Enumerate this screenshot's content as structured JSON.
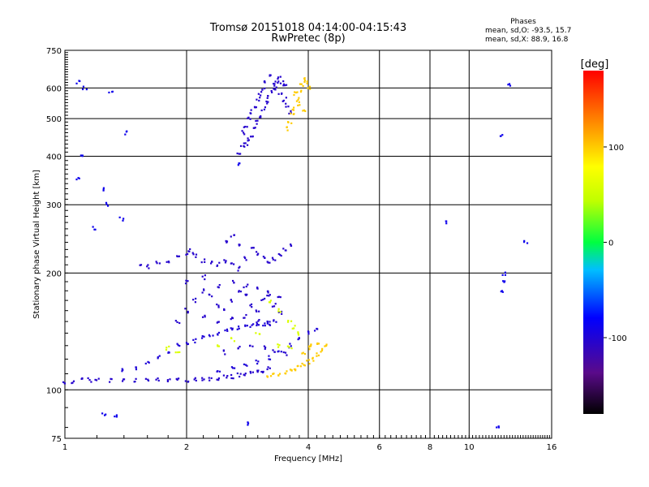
{
  "header": {
    "title_line1": "Tromsø 20151018 04:14:00-04:15:43",
    "title_line2": "RwPretec (8p)",
    "phase_title": "Phases",
    "phase_o": "mean, sd,O: -93.5, 15.7",
    "phase_x": "mean, sd,X: 88.9, 16.8"
  },
  "chart_data": {
    "type": "scatter",
    "xlabel": "Frequency [MHz]",
    "ylabel": "Stationary phase Virtual Height [km]",
    "x_scale": "log",
    "y_scale": "log",
    "xlim": [
      1,
      16
    ],
    "ylim": [
      75,
      750
    ],
    "x_ticks": [
      1,
      2,
      4,
      6,
      8,
      10,
      16
    ],
    "x_tick_labels": [
      "1",
      "2",
      "4",
      "6",
      "8",
      "10",
      "16"
    ],
    "y_ticks": [
      75,
      100,
      200,
      300,
      400,
      500,
      600,
      750
    ],
    "y_tick_labels": [
      "75",
      "100",
      "200",
      "300",
      "400",
      "500",
      "600",
      "750"
    ],
    "grid": true,
    "colorbar": {
      "label": "[deg]",
      "range": [
        -180,
        180
      ],
      "ticks": [
        100,
        0,
        -100
      ],
      "tick_labels": [
        "100",
        "0",
        "-100"
      ]
    },
    "point_groups": [
      {
        "trace": "O-mode lower trace",
        "phase_deg": -105,
        "points": [
          [
            1.0,
            104
          ],
          [
            1.05,
            105
          ],
          [
            1.1,
            106
          ],
          [
            1.15,
            106
          ],
          [
            1.2,
            106
          ],
          [
            1.3,
            106
          ],
          [
            1.4,
            106
          ],
          [
            1.5,
            106
          ],
          [
            1.6,
            106
          ],
          [
            1.7,
            106
          ],
          [
            1.8,
            106
          ],
          [
            1.9,
            106
          ],
          [
            2.0,
            106
          ],
          [
            2.1,
            106
          ],
          [
            2.2,
            107
          ],
          [
            2.3,
            107
          ],
          [
            2.4,
            107
          ],
          [
            2.5,
            108
          ],
          [
            2.6,
            108
          ],
          [
            2.7,
            109
          ],
          [
            2.8,
            109
          ],
          [
            2.9,
            110
          ],
          [
            3.0,
            111
          ],
          [
            3.1,
            112
          ],
          [
            3.2,
            114
          ]
        ]
      },
      {
        "trace": "O-mode second trace",
        "phase_deg": -100,
        "points": [
          [
            1.4,
            112
          ],
          [
            1.5,
            114
          ],
          [
            1.6,
            118
          ],
          [
            1.7,
            122
          ],
          [
            1.8,
            126
          ],
          [
            1.9,
            130
          ],
          [
            2.0,
            132
          ],
          [
            2.1,
            134
          ],
          [
            2.2,
            136
          ],
          [
            2.3,
            138
          ],
          [
            2.4,
            140
          ],
          [
            2.5,
            142
          ],
          [
            2.6,
            143
          ],
          [
            2.7,
            144
          ],
          [
            2.8,
            145
          ],
          [
            2.9,
            146
          ],
          [
            3.0,
            147
          ],
          [
            3.1,
            148
          ],
          [
            3.2,
            149
          ],
          [
            3.3,
            150
          ]
        ]
      },
      {
        "trace": "O-mode third trace",
        "phase_deg": -100,
        "points": [
          [
            2.4,
            112
          ],
          [
            2.6,
            114
          ],
          [
            2.8,
            116
          ],
          [
            3.0,
            118
          ],
          [
            3.2,
            121
          ],
          [
            3.4,
            125
          ],
          [
            3.6,
            130
          ],
          [
            3.8,
            135
          ],
          [
            4.0,
            140
          ],
          [
            4.2,
            142
          ]
        ]
      },
      {
        "trace": "O-mode diffuse F1 echoes",
        "phase_deg": -105,
        "points": [
          [
            1.9,
            150
          ],
          [
            2.0,
            160
          ],
          [
            2.1,
            170
          ],
          [
            2.2,
            180
          ],
          [
            2.3,
            175
          ],
          [
            2.4,
            165
          ],
          [
            2.5,
            160
          ],
          [
            2.6,
            170
          ],
          [
            2.7,
            180
          ],
          [
            2.8,
            175
          ],
          [
            2.9,
            165
          ],
          [
            3.0,
            160
          ],
          [
            3.1,
            170
          ],
          [
            3.2,
            175
          ],
          [
            3.3,
            165
          ],
          [
            3.4,
            158
          ],
          [
            2.2,
            155
          ],
          [
            2.4,
            150
          ],
          [
            2.6,
            152
          ],
          [
            2.8,
            155
          ],
          [
            3.0,
            150
          ],
          [
            3.2,
            148
          ],
          [
            2.5,
            125
          ],
          [
            2.7,
            128
          ],
          [
            2.9,
            130
          ],
          [
            3.1,
            128
          ],
          [
            3.3,
            126
          ],
          [
            3.5,
            124
          ],
          [
            2.0,
            190
          ],
          [
            2.2,
            195
          ],
          [
            2.4,
            185
          ],
          [
            2.6,
            190
          ],
          [
            2.8,
            185
          ],
          [
            3.0,
            182
          ],
          [
            3.2,
            178
          ],
          [
            3.4,
            172
          ]
        ]
      },
      {
        "trace": "O-mode F1 upper echoes",
        "phase_deg": -105,
        "points": [
          [
            1.55,
            210
          ],
          [
            1.6,
            208
          ],
          [
            1.7,
            212
          ],
          [
            1.8,
            215
          ],
          [
            1.9,
            222
          ],
          [
            2.0,
            225
          ],
          [
            2.05,
            228
          ],
          [
            2.1,
            222
          ],
          [
            2.2,
            215
          ],
          [
            2.3,
            212
          ],
          [
            2.4,
            210
          ],
          [
            2.5,
            215
          ],
          [
            2.6,
            210
          ],
          [
            2.7,
            205
          ],
          [
            2.8,
            218
          ],
          [
            2.9,
            230
          ],
          [
            3.0,
            225
          ],
          [
            3.1,
            220
          ],
          [
            3.2,
            215
          ],
          [
            3.3,
            218
          ],
          [
            3.4,
            222
          ],
          [
            3.5,
            230
          ],
          [
            3.6,
            235
          ],
          [
            2.5,
            240
          ],
          [
            2.6,
            250
          ],
          [
            2.7,
            235
          ]
        ]
      },
      {
        "trace": "O-mode F2 trace",
        "phase_deg": -105,
        "points": [
          [
            2.7,
            410
          ],
          [
            2.75,
            420
          ],
          [
            2.8,
            430
          ],
          [
            2.85,
            440
          ],
          [
            2.9,
            450
          ],
          [
            2.95,
            470
          ],
          [
            3.0,
            490
          ],
          [
            3.05,
            510
          ],
          [
            3.1,
            530
          ],
          [
            3.15,
            550
          ],
          [
            3.2,
            570
          ],
          [
            3.25,
            590
          ],
          [
            3.3,
            610
          ],
          [
            3.35,
            625
          ],
          [
            3.4,
            635
          ],
          [
            2.75,
            460
          ],
          [
            2.8,
            480
          ],
          [
            2.85,
            500
          ],
          [
            2.9,
            520
          ],
          [
            2.95,
            540
          ],
          [
            3.0,
            560
          ],
          [
            3.05,
            580
          ],
          [
            3.1,
            600
          ],
          [
            3.15,
            620
          ],
          [
            3.2,
            640
          ],
          [
            3.3,
            600
          ],
          [
            3.4,
            580
          ],
          [
            3.5,
            560
          ],
          [
            3.55,
            540
          ],
          [
            3.6,
            520
          ],
          [
            3.45,
            620
          ],
          [
            3.5,
            610
          ]
        ]
      },
      {
        "trace": "X-mode F2 trace",
        "phase_deg": 100,
        "points": [
          [
            3.55,
            470
          ],
          [
            3.6,
            490
          ],
          [
            3.65,
            510
          ],
          [
            3.7,
            530
          ],
          [
            3.75,
            560
          ],
          [
            3.8,
            590
          ],
          [
            3.85,
            610
          ],
          [
            3.9,
            630
          ],
          [
            3.95,
            620
          ],
          [
            4.0,
            600
          ],
          [
            3.7,
            580
          ],
          [
            3.8,
            545
          ],
          [
            3.9,
            520
          ]
        ]
      },
      {
        "trace": "X-mode lower trace",
        "phase_deg": 100,
        "points": [
          [
            3.2,
            108
          ],
          [
            3.3,
            109
          ],
          [
            3.4,
            110
          ],
          [
            3.5,
            111
          ],
          [
            3.6,
            112
          ],
          [
            3.7,
            113
          ],
          [
            3.8,
            114
          ],
          [
            3.9,
            116
          ],
          [
            4.0,
            118
          ],
          [
            4.1,
            120
          ],
          [
            4.2,
            123
          ],
          [
            4.3,
            126
          ],
          [
            4.4,
            130
          ],
          [
            3.9,
            125
          ],
          [
            4.0,
            128
          ],
          [
            4.1,
            130
          ],
          [
            4.2,
            132
          ]
        ]
      },
      {
        "trace": "mixed-phase echoes",
        "phase_deg": 60,
        "points": [
          [
            3.2,
            170
          ],
          [
            3.4,
            160
          ],
          [
            3.6,
            150
          ],
          [
            3.7,
            145
          ],
          [
            3.8,
            140
          ],
          [
            3.4,
            130
          ],
          [
            3.6,
            128
          ],
          [
            2.4,
            130
          ],
          [
            1.8,
            128
          ],
          [
            1.9,
            124
          ],
          [
            2.6,
            135
          ],
          [
            3.0,
            140
          ]
        ]
      },
      {
        "trace": "noise / isolated echoes",
        "phase_deg": -90,
        "points": [
          [
            1.08,
            620
          ],
          [
            1.12,
            600
          ],
          [
            1.3,
            580
          ],
          [
            1.42,
            460
          ],
          [
            1.1,
            400
          ],
          [
            1.08,
            350
          ],
          [
            1.18,
            260
          ],
          [
            1.25,
            330
          ],
          [
            1.28,
            300
          ],
          [
            1.38,
            275
          ],
          [
            1.33,
            85
          ],
          [
            1.25,
            86
          ],
          [
            2.85,
            82
          ],
          [
            8.8,
            270
          ],
          [
            11.8,
            80
          ],
          [
            12.0,
            450
          ],
          [
            12.2,
            200
          ],
          [
            12.25,
            190
          ],
          [
            12.1,
            180
          ],
          [
            13.8,
            240
          ],
          [
            12.5,
            610
          ],
          [
            2.7,
            380
          ]
        ]
      }
    ]
  }
}
